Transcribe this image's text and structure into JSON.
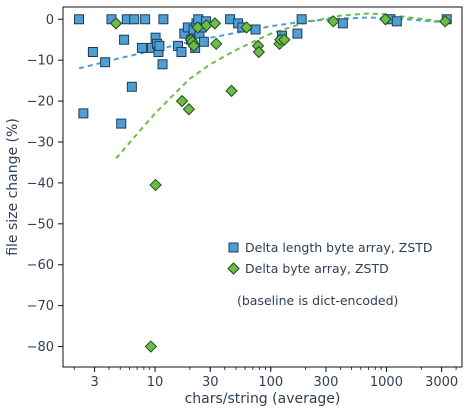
{
  "chart_data": {
    "type": "scatter",
    "xlabel": "chars/string (average)",
    "ylabel": "file size change (%)",
    "xscale": "log",
    "xlim": [
      1.6,
      4500
    ],
    "ylim": [
      -85,
      3
    ],
    "x_ticks": [
      {
        "value": 3,
        "label": "3"
      },
      {
        "value": 10,
        "label": "10"
      },
      {
        "value": 30,
        "label": "30"
      },
      {
        "value": 100,
        "label": "100"
      },
      {
        "value": 300,
        "label": "300"
      },
      {
        "value": 1000,
        "label": "1000"
      },
      {
        "value": 3000,
        "label": "3000"
      }
    ],
    "y_ticks": [
      {
        "value": 0,
        "label": "0"
      },
      {
        "value": -10,
        "label": "−10"
      },
      {
        "value": -20,
        "label": "−20"
      },
      {
        "value": -30,
        "label": "−30"
      },
      {
        "value": -40,
        "label": "−40"
      },
      {
        "value": -50,
        "label": "−50"
      },
      {
        "value": -60,
        "label": "−60"
      },
      {
        "value": -70,
        "label": "−70"
      },
      {
        "value": -80,
        "label": "−80"
      }
    ],
    "grid": false,
    "legend_placement": "lower-right",
    "annotation": "(baseline is dict-encoded)",
    "series": [
      {
        "name": "Delta length byte array, ZSTD",
        "marker": "square",
        "color": "#4f9fd4",
        "edge_color": "#1d3c5a",
        "points": [
          [
            2.2,
            0
          ],
          [
            2.4,
            -23
          ],
          [
            2.9,
            -8
          ],
          [
            3.7,
            -10.5
          ],
          [
            4.2,
            0
          ],
          [
            5.1,
            -25.5
          ],
          [
            5.4,
            -5
          ],
          [
            5.7,
            0
          ],
          [
            6.3,
            -16.5
          ],
          [
            6.6,
            0
          ],
          [
            7.7,
            -7
          ],
          [
            8.2,
            0
          ],
          [
            9.4,
            -7
          ],
          [
            10.1,
            -4.5
          ],
          [
            10.4,
            -6
          ],
          [
            10.7,
            -8
          ],
          [
            10.9,
            -6.5
          ],
          [
            11.6,
            -11
          ],
          [
            11.8,
            0
          ],
          [
            15.8,
            -6.5
          ],
          [
            16.9,
            -8
          ],
          [
            17.9,
            -3.5
          ],
          [
            19.2,
            -2
          ],
          [
            20.5,
            -5
          ],
          [
            21.5,
            -2.5
          ],
          [
            22.2,
            -7
          ],
          [
            22.8,
            -1
          ],
          [
            23.6,
            0
          ],
          [
            24.2,
            -3.5
          ],
          [
            25.3,
            -2
          ],
          [
            26.4,
            -5.5
          ],
          [
            27.6,
            -0.5
          ],
          [
            44.5,
            0
          ],
          [
            52.2,
            -1
          ],
          [
            56.8,
            -2
          ],
          [
            73.9,
            -2.5
          ],
          [
            125,
            -4
          ],
          [
            170,
            -3.5
          ],
          [
            185,
            0
          ],
          [
            420,
            -1
          ],
          [
            1080,
            0
          ],
          [
            1230,
            -0.5
          ],
          [
            3320,
            0
          ]
        ]
      },
      {
        "name": "Delta byte array, ZSTD",
        "marker": "diamond",
        "color": "#6cbd45",
        "edge_color": "#1f4a1c",
        "points": [
          [
            4.6,
            -1
          ],
          [
            9.2,
            -80
          ],
          [
            10.1,
            -40.5
          ],
          [
            17.1,
            -20
          ],
          [
            19.6,
            -22
          ],
          [
            20.4,
            -5
          ],
          [
            21.0,
            -5.5
          ],
          [
            21.6,
            -6.5
          ],
          [
            23.4,
            -2
          ],
          [
            27.8,
            -1.5
          ],
          [
            32.9,
            -1
          ],
          [
            33.8,
            -6
          ],
          [
            45.8,
            -17.5
          ],
          [
            61.8,
            -2
          ],
          [
            77.6,
            -6.5
          ],
          [
            78.8,
            -8
          ],
          [
            119,
            -6
          ],
          [
            121,
            -5
          ],
          [
            131,
            -5
          ],
          [
            347,
            -0.5
          ],
          [
            980,
            0
          ],
          [
            3220,
            -0.5
          ]
        ]
      }
    ],
    "fits": [
      {
        "series": "Delta length byte array, ZSTD",
        "style": "dashed",
        "color": "#4f9fd4",
        "points": [
          [
            2.2,
            -12
          ],
          [
            5,
            -9.5
          ],
          [
            10,
            -7.5
          ],
          [
            20,
            -5.5
          ],
          [
            50,
            -3.3
          ],
          [
            100,
            -1.7
          ],
          [
            200,
            -0.5
          ],
          [
            400,
            0.2
          ],
          [
            700,
            0.4
          ],
          [
            1000,
            0.3
          ],
          [
            1500,
            0
          ],
          [
            2000,
            -0.3
          ],
          [
            3320,
            -0.8
          ]
        ]
      },
      {
        "series": "Delta byte array, ZSTD",
        "style": "dashed",
        "color": "#6cbd45",
        "points": [
          [
            4.6,
            -34
          ],
          [
            7,
            -28
          ],
          [
            10,
            -23
          ],
          [
            15,
            -18
          ],
          [
            20,
            -14.5
          ],
          [
            30,
            -11
          ],
          [
            50,
            -7.5
          ],
          [
            100,
            -3.5
          ],
          [
            200,
            -0.8
          ],
          [
            400,
            0.9
          ],
          [
            700,
            1.4
          ],
          [
            1000,
            1.2
          ],
          [
            1500,
            0.5
          ],
          [
            2000,
            0.1
          ],
          [
            3220,
            -0.7
          ]
        ]
      }
    ]
  }
}
